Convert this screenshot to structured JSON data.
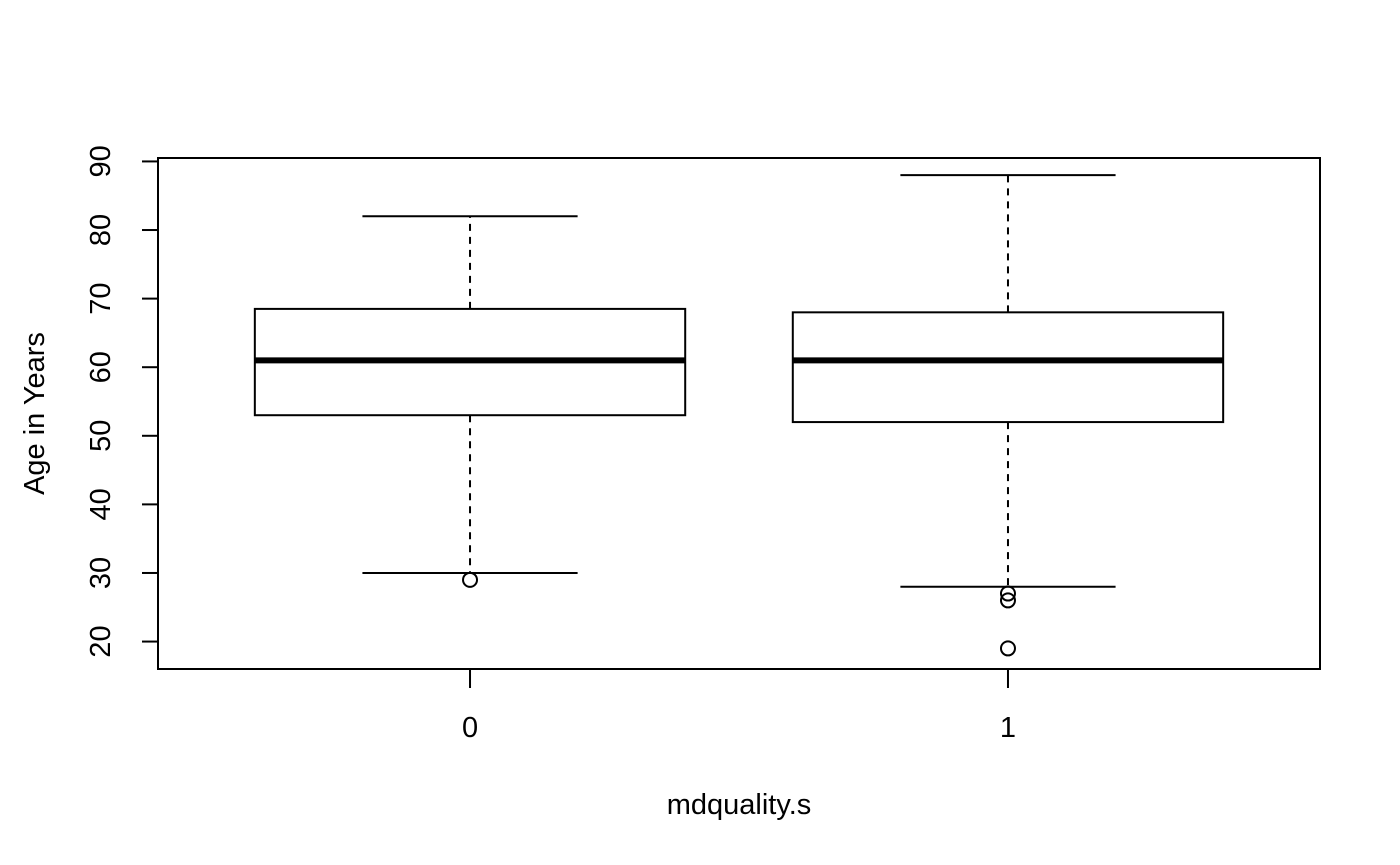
{
  "chart_data": {
    "type": "boxplot",
    "title": "",
    "xlabel": "mdquality.s",
    "ylabel": "Age in Years",
    "categories": [
      "0",
      "1"
    ],
    "ylim": [
      16,
      90.5
    ],
    "y_ticks": [
      20,
      30,
      40,
      50,
      60,
      70,
      80,
      90
    ],
    "boxes": [
      {
        "category": "0",
        "whisker_low": 30,
        "q1": 53,
        "median": 61,
        "q3": 68.5,
        "whisker_high": 82,
        "outliers": [
          29
        ]
      },
      {
        "category": "1",
        "whisker_low": 28,
        "q1": 52,
        "median": 61,
        "q3": 68,
        "whisker_high": 88,
        "outliers": [
          27,
          26,
          19
        ]
      }
    ],
    "grid": false,
    "legend": "none"
  }
}
